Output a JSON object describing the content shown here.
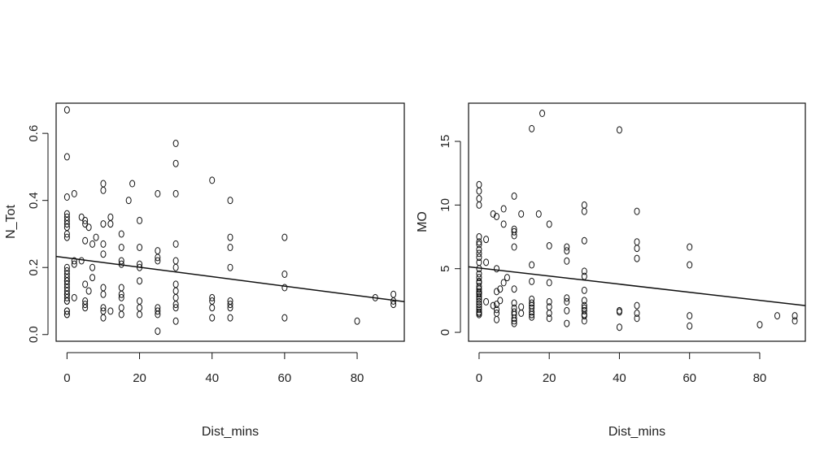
{
  "chart_data": [
    {
      "type": "scatter",
      "xlabel": "Dist_mins",
      "ylabel": "N_Tot",
      "xlim": [
        -3,
        93
      ],
      "ylim": [
        -0.02,
        0.69
      ],
      "xticks": [
        0,
        20,
        40,
        60,
        80
      ],
      "yticks": [
        0.0,
        0.2,
        0.4,
        0.6
      ],
      "ytick_labels": [
        "0.0",
        "0.2",
        "0.4",
        "0.6"
      ],
      "fit_line": {
        "x": [
          -3,
          93
        ],
        "y": [
          0.233,
          0.098
        ]
      },
      "x": [
        0,
        0,
        0,
        0,
        0,
        0,
        0,
        0,
        0,
        0,
        0,
        0,
        0,
        0,
        0,
        0,
        0,
        0,
        0,
        0,
        0,
        0,
        0,
        0,
        0,
        0,
        0,
        0,
        2,
        2,
        2,
        2,
        4,
        4,
        5,
        5,
        5,
        5,
        5,
        5,
        5,
        6,
        6,
        7,
        7,
        7,
        8,
        10,
        10,
        10,
        10,
        10,
        10,
        10,
        10,
        10,
        10,
        12,
        12,
        12,
        15,
        15,
        15,
        15,
        15,
        15,
        15,
        15,
        15,
        17,
        18,
        20,
        20,
        20,
        20,
        20,
        20,
        20,
        20,
        25,
        25,
        25,
        25,
        25,
        25,
        25,
        25,
        30,
        30,
        30,
        30,
        30,
        30,
        30,
        30,
        30,
        30,
        30,
        30,
        40,
        40,
        40,
        40,
        40,
        45,
        45,
        45,
        45,
        45,
        45,
        45,
        45,
        60,
        60,
        60,
        60,
        80,
        85,
        90,
        90,
        90
      ],
      "y": [
        0.67,
        0.53,
        0.41,
        0.36,
        0.35,
        0.34,
        0.33,
        0.32,
        0.3,
        0.29,
        0.2,
        0.19,
        0.18,
        0.17,
        0.16,
        0.16,
        0.15,
        0.14,
        0.13,
        0.12,
        0.12,
        0.11,
        0.1,
        0.1,
        0.07,
        0.07,
        0.06,
        0.06,
        0.42,
        0.22,
        0.21,
        0.11,
        0.35,
        0.22,
        0.34,
        0.33,
        0.28,
        0.15,
        0.1,
        0.09,
        0.08,
        0.32,
        0.13,
        0.27,
        0.2,
        0.17,
        0.29,
        0.45,
        0.43,
        0.33,
        0.27,
        0.24,
        0.14,
        0.12,
        0.08,
        0.07,
        0.05,
        0.35,
        0.33,
        0.07,
        0.3,
        0.26,
        0.22,
        0.21,
        0.14,
        0.12,
        0.11,
        0.08,
        0.06,
        0.4,
        0.45,
        0.34,
        0.26,
        0.21,
        0.2,
        0.16,
        0.1,
        0.08,
        0.06,
        0.42,
        0.25,
        0.23,
        0.22,
        0.08,
        0.07,
        0.06,
        0.01,
        0.57,
        0.51,
        0.42,
        0.27,
        0.22,
        0.2,
        0.15,
        0.13,
        0.11,
        0.09,
        0.08,
        0.04,
        0.46,
        0.11,
        0.1,
        0.08,
        0.05,
        0.4,
        0.29,
        0.26,
        0.2,
        0.1,
        0.09,
        0.08,
        0.05,
        0.29,
        0.18,
        0.14,
        0.05,
        0.04,
        0.11,
        0.12,
        0.1,
        0.09
      ]
    },
    {
      "type": "scatter",
      "xlabel": "Dist_mins",
      "ylabel": "MO",
      "xlim": [
        -3,
        93
      ],
      "ylim": [
        -0.7,
        18.0
      ],
      "xticks": [
        0,
        20,
        40,
        60,
        80
      ],
      "yticks": [
        0,
        5,
        10,
        15
      ],
      "ytick_labels": [
        "0",
        "5",
        "10",
        "15"
      ],
      "fit_line": {
        "x": [
          -3,
          93
        ],
        "y": [
          5.15,
          2.1
        ]
      },
      "x": [
        0,
        0,
        0,
        0,
        0,
        0,
        0,
        0,
        0,
        0,
        0,
        0,
        0,
        0,
        0,
        0,
        0,
        0,
        0,
        0,
        0,
        0,
        0,
        0,
        0,
        0,
        0,
        0,
        0,
        0,
        2,
        2,
        2,
        4,
        4,
        5,
        5,
        5,
        5,
        5,
        5,
        5,
        6,
        6,
        7,
        7,
        7,
        8,
        10,
        10,
        10,
        10,
        10,
        10,
        10,
        10,
        10,
        10,
        10,
        10,
        10,
        12,
        12,
        12,
        15,
        15,
        15,
        15,
        15,
        15,
        15,
        15,
        15,
        15,
        17,
        18,
        20,
        20,
        20,
        20,
        20,
        20,
        20,
        25,
        25,
        25,
        25,
        25,
        25,
        25,
        30,
        30,
        30,
        30,
        30,
        30,
        30,
        30,
        30,
        30,
        30,
        30,
        30,
        40,
        40,
        40,
        40,
        45,
        45,
        45,
        45,
        45,
        45,
        45,
        60,
        60,
        60,
        60,
        80,
        85,
        90,
        90
      ],
      "y": [
        11.6,
        11.1,
        10.5,
        10.0,
        7.5,
        7.1,
        6.9,
        6.5,
        6.2,
        5.9,
        5.5,
        5.0,
        4.6,
        4.3,
        4.0,
        3.9,
        3.6,
        3.4,
        3.2,
        3.1,
        3.0,
        2.8,
        2.6,
        2.4,
        2.2,
        2.0,
        1.8,
        1.6,
        1.5,
        1.4,
        7.3,
        5.5,
        2.4,
        9.3,
        2.1,
        9.1,
        5.0,
        3.2,
        2.2,
        1.8,
        1.5,
        1.0,
        3.4,
        2.5,
        9.7,
        8.5,
        3.9,
        4.3,
        10.7,
        8.1,
        7.9,
        7.6,
        6.7,
        3.4,
        2.3,
        1.9,
        1.6,
        1.4,
        1.1,
        0.9,
        0.7,
        9.3,
        2.0,
        1.5,
        16.0,
        5.3,
        4.0,
        2.6,
        2.3,
        2.1,
        1.9,
        1.6,
        1.4,
        1.2,
        9.3,
        17.2,
        8.5,
        6.8,
        3.9,
        2.4,
        2.0,
        1.5,
        1.1,
        6.7,
        6.4,
        5.6,
        2.7,
        2.4,
        1.7,
        0.7,
        10.0,
        9.5,
        7.2,
        4.8,
        4.4,
        3.3,
        2.5,
        2.1,
        1.9,
        1.7,
        1.4,
        1.3,
        0.9,
        15.9,
        1.7,
        1.6,
        0.4,
        9.5,
        7.1,
        6.6,
        5.8,
        2.1,
        1.5,
        1.1,
        6.7,
        5.3,
        1.3,
        0.5,
        0.6,
        1.3,
        1.3,
        0.9
      ]
    }
  ]
}
